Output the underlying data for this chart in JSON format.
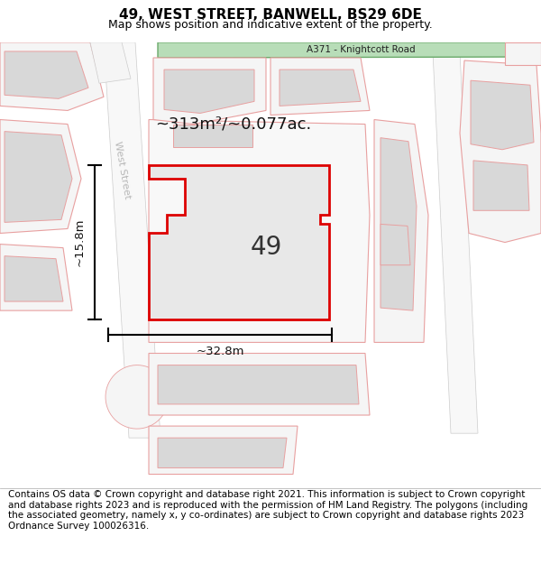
{
  "title_line1": "49, WEST STREET, BANWELL, BS29 6DE",
  "title_line2": "Map shows position and indicative extent of the property.",
  "footer_text": "Contains OS data © Crown copyright and database right 2021. This information is subject to Crown copyright and database rights 2023 and is reproduced with the permission of HM Land Registry. The polygons (including the associated geometry, namely x, y co-ordinates) are subject to Crown copyright and database rights 2023 Ordnance Survey 100026316.",
  "road_label": "A371 - Knightcott Road",
  "road_band_color": "#b8ddb8",
  "road_band_edge": "#6aaa6a",
  "street_label": "West Street",
  "area_label": "~313m²/~0.077ac.",
  "property_number": "49",
  "dim_width": "~32.8m",
  "dim_height": "~15.8m",
  "map_bg": "#ffffff",
  "property_fill": "#e8e8e8",
  "property_outline": "#dd0000",
  "plot_outline_color": "#e8a0a0",
  "building_fill": "#d8d8d8",
  "building_outline": "#e8a0a0",
  "title_fontsize": 11,
  "subtitle_fontsize": 9,
  "footer_fontsize": 7.5
}
